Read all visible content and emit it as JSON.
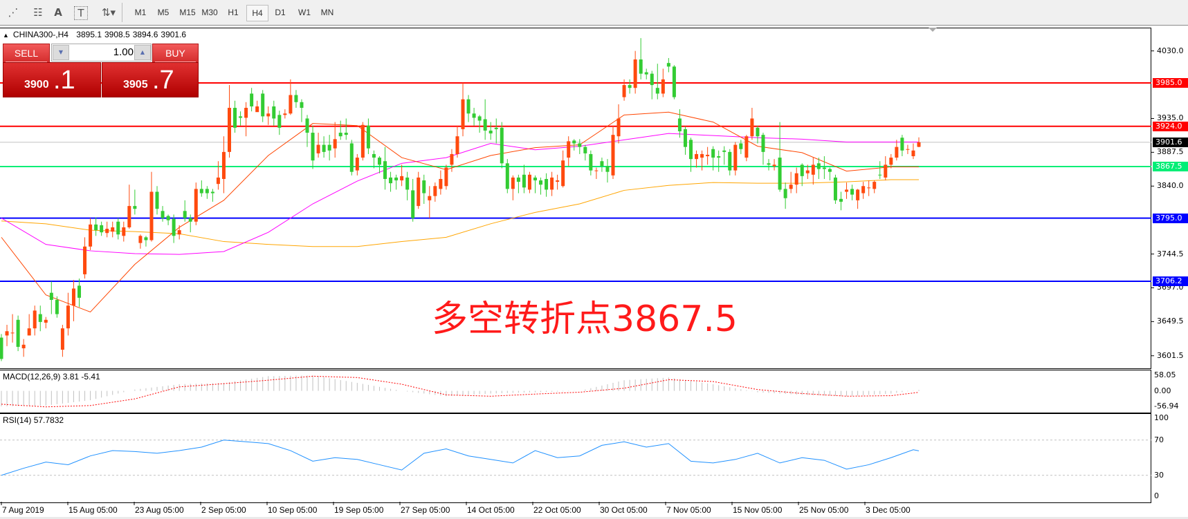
{
  "toolbar": {
    "tools": [
      {
        "icon": "fibonacci-expansion-icon",
        "glyph": "⋰"
      },
      {
        "icon": "fibonacci-fan-icon",
        "glyph": "☷"
      },
      {
        "icon": "text-icon",
        "glyph": "A"
      },
      {
        "icon": "text-label-icon",
        "glyph": "T"
      },
      {
        "icon": "arrows-dropdown-icon",
        "glyph": "⇅▾"
      }
    ],
    "timeframes": [
      "M1",
      "M5",
      "M15",
      "M30",
      "H1",
      "H4",
      "D1",
      "W1",
      "MN"
    ],
    "active_timeframe": "H4"
  },
  "chart": {
    "symbol_info": "CHINA300-,H4",
    "ohlc_info": [
      "3895.1",
      "3908.5",
      "3894.6",
      "3901.6"
    ],
    "annotation": "多空转折点3867.5"
  },
  "trade_panel": {
    "sell_label": "SELL",
    "buy_label": "BUY",
    "volume": "1.00",
    "sell_price_main": "3900",
    "sell_price_frac": ".1",
    "buy_price_main": "3905",
    "buy_price_frac": ".7"
  },
  "chart_data": {
    "type": "candlestick",
    "ylim": [
      3580,
      4055
    ],
    "price_ticks": [
      "4030.0",
      "3935.0",
      "3887.5",
      "3840.0",
      "3744.5",
      "3697.0",
      "3649.5",
      "3601.5"
    ],
    "x_tick_labels": [
      "7 Aug 2019",
      "15 Aug 05:00",
      "23 Aug 05:00",
      "2 Sep 05:00",
      "10 Sep 05:00",
      "19 Sep 05:00",
      "27 Sep 05:00",
      "14 Oct 05:00",
      "22 Oct 05:00",
      "30 Oct 05:00",
      "7 Nov 05:00",
      "15 Nov 05:00",
      "25 Nov 05:00",
      "3 Dec 05:00"
    ],
    "colors": {
      "bull": "#ff4a0e",
      "bear": "#33cc33",
      "ma_fast": "#ff4500",
      "ma_mid": "#ff00ff",
      "ma_slow": "#ffa500",
      "rsi": "#1e90ff",
      "macd_hist": "#c0c0c0",
      "macd_signal": "#ff0000"
    },
    "levels": [
      {
        "price": 3985.0,
        "label": "3985.0",
        "color": "#ff0000"
      },
      {
        "price": 3924.0,
        "label": "3924.0",
        "color": "#ff0000"
      },
      {
        "price": 3867.5,
        "label": "3867.5",
        "color": "#00ee76"
      },
      {
        "price": 3795.0,
        "label": "3795.0",
        "color": "#0000ff"
      },
      {
        "price": 3706.2,
        "label": "3706.2",
        "color": "#0000ff"
      }
    ],
    "bid": {
      "price": 3901.6,
      "label": "3901.6",
      "color": "#c0c0c0"
    },
    "candles": [
      [
        3627,
        3632,
        3594,
        3597
      ],
      [
        3630,
        3645,
        3615,
        3636
      ],
      [
        3633,
        3660,
        3620,
        3634
      ],
      [
        3652,
        3658,
        3608,
        3614
      ],
      [
        3612,
        3625,
        3600,
        3617
      ],
      [
        3630,
        3660,
        3630,
        3640
      ],
      [
        3640,
        3672,
        3630,
        3665
      ],
      [
        3660,
        3672,
        3636,
        3649
      ],
      [
        3648,
        3656,
        3640,
        3652
      ],
      [
        3690,
        3706,
        3660,
        3680
      ],
      [
        3680,
        3685,
        3655,
        3660
      ],
      [
        3610,
        3645,
        3600,
        3640
      ],
      [
        3640,
        3690,
        3630,
        3672
      ],
      [
        3672,
        3708,
        3650,
        3696
      ],
      [
        3700,
        3710,
        3670,
        3683
      ],
      [
        3716,
        3768,
        3710,
        3755
      ],
      [
        3755,
        3795,
        3750,
        3786
      ],
      [
        3786,
        3796,
        3770,
        3778
      ],
      [
        3785,
        3790,
        3770,
        3775
      ],
      [
        3774,
        3790,
        3768,
        3780
      ],
      [
        3776,
        3790,
        3768,
        3782
      ],
      [
        3790,
        3795,
        3765,
        3772
      ],
      [
        3770,
        3790,
        3762,
        3782
      ],
      [
        3782,
        3842,
        3780,
        3812
      ],
      [
        3812,
        3835,
        3800,
        3808
      ],
      [
        3760,
        3772,
        3752,
        3770
      ],
      [
        3768,
        3770,
        3755,
        3764
      ],
      [
        3764,
        3860,
        3762,
        3832
      ],
      [
        3832,
        3840,
        3800,
        3808
      ],
      [
        3805,
        3812,
        3790,
        3795
      ],
      [
        3798,
        3800,
        3785,
        3792
      ],
      [
        3794,
        3800,
        3760,
        3770
      ],
      [
        3772,
        3785,
        3765,
        3778
      ],
      [
        3805,
        3820,
        3790,
        3795
      ],
      [
        3795,
        3800,
        3775,
        3790
      ],
      [
        3790,
        3845,
        3785,
        3836
      ],
      [
        3836,
        3848,
        3825,
        3830
      ],
      [
        3836,
        3840,
        3822,
        3830
      ],
      [
        3832,
        3836,
        3818,
        3830
      ],
      [
        3843,
        3875,
        3835,
        3852
      ],
      [
        3850,
        3910,
        3830,
        3888
      ],
      [
        3888,
        3982,
        3880,
        3950
      ],
      [
        3950,
        3960,
        3915,
        3922
      ],
      [
        3938,
        3945,
        3925,
        3936
      ],
      [
        3936,
        3958,
        3910,
        3950
      ],
      [
        3970,
        3978,
        3945,
        3952
      ],
      [
        3944,
        3960,
        3945,
        3952
      ],
      [
        3970,
        3975,
        3930,
        3938
      ],
      [
        3938,
        3952,
        3926,
        3942
      ],
      [
        3952,
        3960,
        3925,
        3935
      ],
      [
        3940,
        3946,
        3912,
        3922
      ],
      [
        3940,
        3948,
        3935,
        3942
      ],
      [
        3942,
        3990,
        3940,
        3968
      ],
      [
        3968,
        3975,
        3950,
        3958
      ],
      [
        3958,
        3962,
        3930,
        3950
      ],
      [
        3935,
        3940,
        3895,
        3915
      ],
      [
        3915,
        3925,
        3864,
        3876
      ],
      [
        3886,
        3915,
        3880,
        3898
      ],
      [
        3898,
        3910,
        3880,
        3888
      ],
      [
        3898,
        3912,
        3876,
        3890
      ],
      [
        3893,
        3930,
        3880,
        3906
      ],
      [
        3915,
        3932,
        3905,
        3910
      ],
      [
        3915,
        3935,
        3905,
        3912
      ],
      [
        3900,
        3905,
        3855,
        3860
      ],
      [
        3862,
        3885,
        3855,
        3880
      ],
      [
        3880,
        3930,
        3876,
        3926
      ],
      [
        3925,
        3935,
        3885,
        3893
      ],
      [
        3885,
        3890,
        3865,
        3880
      ],
      [
        3880,
        3882,
        3858,
        3870
      ],
      [
        3875,
        3895,
        3835,
        3850
      ],
      [
        3852,
        3860,
        3832,
        3844
      ],
      [
        3852,
        3856,
        3835,
        3848
      ],
      [
        3848,
        3870,
        3840,
        3854
      ],
      [
        3852,
        3860,
        3820,
        3835
      ],
      [
        3834,
        3850,
        3790,
        3795
      ],
      [
        3812,
        3860,
        3808,
        3852
      ],
      [
        3848,
        3856,
        3815,
        3830
      ],
      [
        3820,
        3840,
        3795,
        3826
      ],
      [
        3826,
        3845,
        3818,
        3840
      ],
      [
        3836,
        3862,
        3828,
        3850
      ],
      [
        3840,
        3870,
        3835,
        3866
      ],
      [
        3870,
        3892,
        3860,
        3885
      ],
      [
        3885,
        3925,
        3880,
        3910
      ],
      [
        3920,
        3985,
        3910,
        3962
      ],
      [
        3962,
        3968,
        3930,
        3942
      ],
      [
        3942,
        3950,
        3925,
        3936
      ],
      [
        3938,
        3940,
        3915,
        3932
      ],
      [
        3934,
        3962,
        3905,
        3918
      ],
      [
        3918,
        3930,
        3905,
        3914
      ],
      [
        3922,
        3935,
        3900,
        3920
      ],
      [
        3922,
        3930,
        3865,
        3872
      ],
      [
        3872,
        3878,
        3830,
        3836
      ],
      [
        3836,
        3855,
        3820,
        3852
      ],
      [
        3852,
        3856,
        3830,
        3846
      ],
      [
        3856,
        3870,
        3830,
        3838
      ],
      [
        3835,
        3860,
        3830,
        3856
      ],
      [
        3852,
        3855,
        3830,
        3848
      ],
      [
        3848,
        3852,
        3828,
        3842
      ],
      [
        3850,
        3858,
        3825,
        3835
      ],
      [
        3835,
        3860,
        3826,
        3852
      ],
      [
        3846,
        3856,
        3835,
        3848
      ],
      [
        3840,
        3890,
        3838,
        3876
      ],
      [
        3880,
        3910,
        3868,
        3903
      ],
      [
        3904,
        3906,
        3890,
        3900
      ],
      [
        3900,
        3906,
        3885,
        3895
      ],
      [
        3895,
        3898,
        3876,
        3886
      ],
      [
        3885,
        3890,
        3855,
        3862
      ],
      [
        3862,
        3866,
        3850,
        3862
      ],
      [
        3875,
        3880,
        3860,
        3868
      ],
      [
        3868,
        3878,
        3845,
        3860
      ],
      [
        3855,
        3925,
        3850,
        3912
      ],
      [
        3910,
        3955,
        3900,
        3935
      ],
      [
        3965,
        3990,
        3960,
        3982
      ],
      [
        3982,
        3990,
        3970,
        3978
      ],
      [
        3978,
        4030,
        3970,
        4018
      ],
      [
        4018,
        4048,
        3990,
        3998
      ],
      [
        4000,
        4005,
        3990,
        3997
      ],
      [
        3998,
        4002,
        3962,
        3982
      ],
      [
        3978,
        4012,
        3962,
        3970
      ],
      [
        3970,
        4005,
        3965,
        3990
      ],
      [
        4013,
        4020,
        4000,
        4008
      ],
      [
        4008,
        4010,
        3962,
        3965
      ],
      [
        3935,
        3948,
        3908,
        3917
      ],
      [
        3920,
        3924,
        3884,
        3895
      ],
      [
        3905,
        3908,
        3860,
        3878
      ],
      [
        3878,
        3890,
        3866,
        3885
      ],
      [
        3880,
        3890,
        3862,
        3885
      ],
      [
        3882,
        3895,
        3870,
        3884
      ],
      [
        3892,
        3896,
        3862,
        3880
      ],
      [
        3882,
        3890,
        3860,
        3880
      ],
      [
        3890,
        3896,
        3870,
        3888
      ],
      [
        3888,
        3892,
        3855,
        3862
      ],
      [
        3862,
        3902,
        3855,
        3898
      ],
      [
        3900,
        3905,
        3885,
        3892
      ],
      [
        3880,
        3912,
        3875,
        3910
      ],
      [
        3910,
        3950,
        3905,
        3935
      ],
      [
        3922,
        3925,
        3900,
        3910
      ],
      [
        3912,
        3915,
        3870,
        3888
      ],
      [
        3872,
        3878,
        3862,
        3870
      ],
      [
        3868,
        3878,
        3862,
        3870
      ],
      [
        3880,
        3930,
        3832,
        3835
      ],
      [
        3836,
        3845,
        3808,
        3823
      ],
      [
        3836,
        3860,
        3830,
        3842
      ],
      [
        3842,
        3866,
        3830,
        3858
      ],
      [
        3870,
        3872,
        3840,
        3854
      ],
      [
        3858,
        3870,
        3850,
        3862
      ],
      [
        3856,
        3880,
        3842,
        3870
      ],
      [
        3872,
        3880,
        3850,
        3864
      ],
      [
        3866,
        3882,
        3850,
        3864
      ],
      [
        3864,
        3866,
        3848,
        3860
      ],
      [
        3852,
        3856,
        3815,
        3820
      ],
      [
        3822,
        3832,
        3806,
        3818
      ],
      [
        3832,
        3845,
        3822,
        3835
      ],
      [
        3836,
        3842,
        3820,
        3828
      ],
      [
        3820,
        3836,
        3808,
        3835
      ],
      [
        3830,
        3846,
        3822,
        3840
      ],
      [
        3837,
        3848,
        3826,
        3838
      ],
      [
        3836,
        3848,
        3830,
        3846
      ],
      [
        3856,
        3875,
        3850,
        3855
      ],
      [
        3852,
        3882,
        3848,
        3870
      ],
      [
        3870,
        3885,
        3865,
        3880
      ],
      [
        3880,
        3905,
        3876,
        3895
      ],
      [
        3908,
        3912,
        3882,
        3890
      ],
      [
        3892,
        3898,
        3885,
        3892
      ],
      [
        3882,
        3900,
        3878,
        3890
      ],
      [
        3895.1,
        3908.5,
        3894.6,
        3901.6
      ]
    ],
    "moving_averages": {
      "fast": [
        3768,
        3687,
        3663,
        3730,
        3782,
        3820,
        3883,
        3928,
        3925,
        3880,
        3863,
        3883,
        3894,
        3898,
        3940,
        3944,
        3930,
        3896,
        3887,
        3861,
        3867
      ],
      "mid": [
        3795,
        3758,
        3749,
        3745,
        3744,
        3748,
        3775,
        3815,
        3847,
        3872,
        3880,
        3900,
        3891,
        3896,
        3905,
        3914,
        3911,
        3908,
        3906,
        3902,
        3902
      ],
      "slow": [
        3791,
        3787,
        3778,
        3776,
        3773,
        3762,
        3758,
        3755,
        3755,
        3762,
        3768,
        3787,
        3803,
        3815,
        3834,
        3841,
        3845,
        3844,
        3844,
        3846,
        3849
      ]
    },
    "macd": {
      "label": "MACD(12,26,9)",
      "main_value": "3.81",
      "signal_value": "-5.41",
      "axis_ticks": [
        "58.05",
        "0.00",
        "-56.94"
      ],
      "ylim": [
        -56.94,
        58.05
      ],
      "main": [
        -58,
        -55,
        -35,
        5,
        25,
        30,
        55,
        58,
        30,
        0,
        -20,
        -10,
        -5,
        0,
        40,
        50,
        25,
        -5,
        -15,
        -20,
        -10
      ],
      "signal": [
        -50,
        -60,
        -55,
        -30,
        15,
        27,
        40,
        55,
        50,
        25,
        -15,
        -20,
        -12,
        -5,
        10,
        42,
        35,
        5,
        -10,
        -20,
        -18
      ]
    },
    "rsi": {
      "label": "RSI(14)",
      "value": "57.7832",
      "axis_ticks": [
        "100",
        "70",
        "30",
        "0"
      ],
      "levels": [
        70,
        30
      ],
      "ylim": [
        0,
        100
      ],
      "values": [
        30,
        38,
        45,
        42,
        52,
        58,
        57,
        55,
        58,
        62,
        70,
        68,
        66,
        58,
        46,
        50,
        48,
        42,
        36,
        55,
        60,
        52,
        48,
        44,
        58,
        50,
        52,
        64,
        68,
        62,
        66,
        46,
        44,
        48,
        55,
        44,
        50,
        47,
        37,
        42,
        50,
        59
      ]
    }
  }
}
